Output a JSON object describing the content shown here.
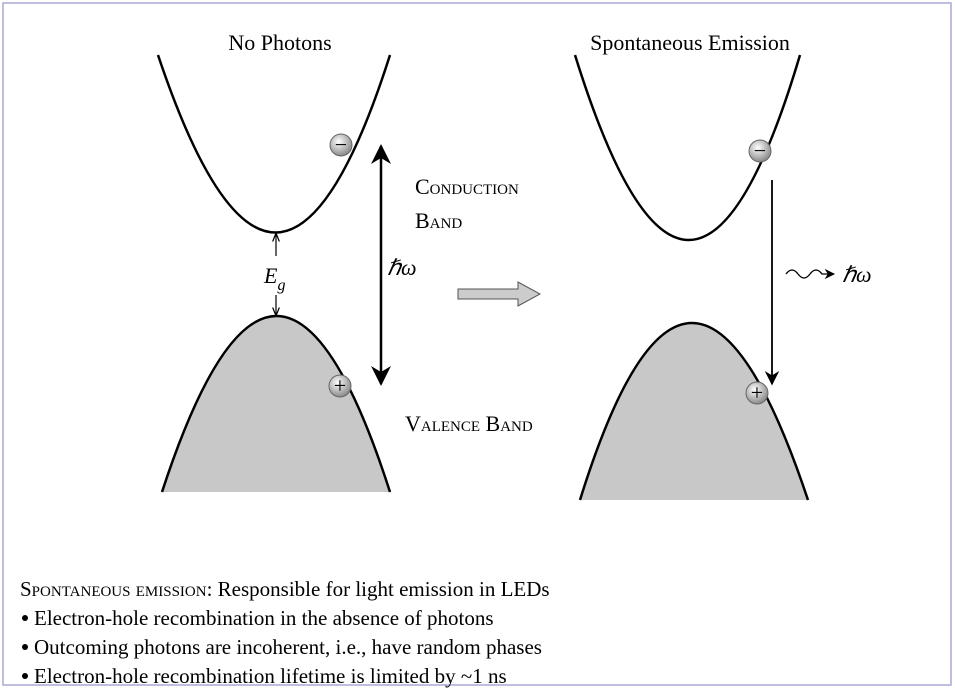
{
  "panels": [
    {
      "title": "No Photons",
      "electron": "−",
      "hole": "+",
      "photon_energy": "ℏω"
    },
    {
      "title": "Spontaneous Emission",
      "electron": "−",
      "hole": "+",
      "photon_energy": "ℏω"
    }
  ],
  "labels": {
    "conduction_band": [
      "Conduction",
      "Band"
    ],
    "valence_band": "Valence Band",
    "energy_gap": {
      "symbol": "E",
      "subscript": "g"
    }
  },
  "notes": {
    "heading": "Spontaneous emission:",
    "heading_rest": " Responsible for light emission in LEDs",
    "bullets": [
      "Electron-hole recombination in the absence of photons",
      "Outcoming photons are incoherent, i.e., have random phases",
      "Electron-hole recombination lifetime is limited by ~1 ns"
    ]
  }
}
